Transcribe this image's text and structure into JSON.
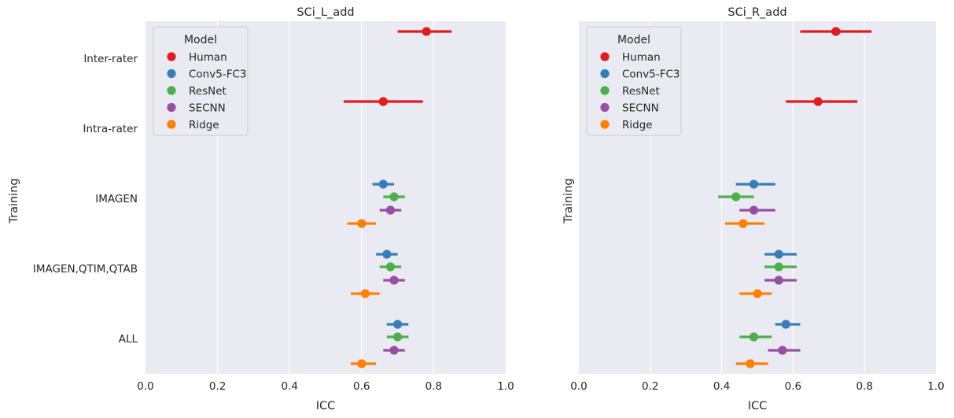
{
  "figure": {
    "ylabel": "Training",
    "xlabel": "ICC",
    "legend_title": "Model",
    "models": [
      {
        "name": "Human",
        "color": "#e41a1c"
      },
      {
        "name": "Conv5-FC3",
        "color": "#377eb8"
      },
      {
        "name": "ResNet",
        "color": "#4daf4a"
      },
      {
        "name": "SECNN",
        "color": "#984ea3"
      },
      {
        "name": "Ridge",
        "color": "#ff7f00"
      }
    ]
  },
  "chart_data": [
    {
      "type": "scatter",
      "subtype": "pointplot-with-ci",
      "title": "SCi_L_add",
      "xlabel": "ICC",
      "ylabel": "Training",
      "xlim": [
        0.0,
        1.0
      ],
      "xticks": [
        "0.0",
        "0.2",
        "0.4",
        "0.6",
        "0.8",
        "1.0"
      ],
      "categories": [
        "Inter-rater",
        "Intra-rater",
        "IMAGEN",
        "IMAGEN,QTIM,QTAB",
        "ALL"
      ],
      "show_category_labels": true,
      "grid": true,
      "legend": "top-left",
      "series": [
        {
          "name": "Human",
          "points": [
            [
              0.78,
              0.7,
              0.85
            ],
            [
              0.66,
              0.55,
              0.77
            ],
            null,
            null,
            null
          ]
        },
        {
          "name": "Conv5-FC3",
          "points": [
            null,
            null,
            [
              0.66,
              0.63,
              0.69
            ],
            [
              0.67,
              0.64,
              0.7
            ],
            [
              0.7,
              0.67,
              0.73
            ]
          ]
        },
        {
          "name": "ResNet",
          "points": [
            null,
            null,
            [
              0.69,
              0.66,
              0.72
            ],
            [
              0.68,
              0.65,
              0.71
            ],
            [
              0.7,
              0.67,
              0.73
            ]
          ]
        },
        {
          "name": "SECNN",
          "points": [
            null,
            null,
            [
              0.68,
              0.65,
              0.71
            ],
            [
              0.69,
              0.66,
              0.72
            ],
            [
              0.69,
              0.66,
              0.72
            ]
          ]
        },
        {
          "name": "Ridge",
          "points": [
            null,
            null,
            [
              0.6,
              0.56,
              0.64
            ],
            [
              0.61,
              0.57,
              0.65
            ],
            [
              0.6,
              0.57,
              0.64
            ]
          ]
        }
      ]
    },
    {
      "type": "scatter",
      "subtype": "pointplot-with-ci",
      "title": "SCi_R_add",
      "xlabel": "ICC",
      "ylabel": "Training",
      "xlim": [
        0.0,
        1.0
      ],
      "xticks": [
        "0.0",
        "0.2",
        "0.4",
        "0.6",
        "0.8",
        "1.0"
      ],
      "categories": [
        "Inter-rater",
        "Intra-rater",
        "IMAGEN",
        "IMAGEN,QTIM,QTAB",
        "ALL"
      ],
      "show_category_labels": false,
      "grid": true,
      "legend": "top-left",
      "series": [
        {
          "name": "Human",
          "points": [
            [
              0.72,
              0.62,
              0.82
            ],
            [
              0.67,
              0.58,
              0.78
            ],
            null,
            null,
            null
          ]
        },
        {
          "name": "Conv5-FC3",
          "points": [
            null,
            null,
            [
              0.49,
              0.44,
              0.55
            ],
            [
              0.56,
              0.52,
              0.61
            ],
            [
              0.58,
              0.55,
              0.62
            ]
          ]
        },
        {
          "name": "ResNet",
          "points": [
            null,
            null,
            [
              0.44,
              0.39,
              0.49
            ],
            [
              0.56,
              0.52,
              0.61
            ],
            [
              0.49,
              0.45,
              0.54
            ]
          ]
        },
        {
          "name": "SECNN",
          "points": [
            null,
            null,
            [
              0.49,
              0.45,
              0.55
            ],
            [
              0.56,
              0.52,
              0.61
            ],
            [
              0.57,
              0.53,
              0.62
            ]
          ]
        },
        {
          "name": "Ridge",
          "points": [
            null,
            null,
            [
              0.46,
              0.41,
              0.52
            ],
            [
              0.5,
              0.45,
              0.54
            ],
            [
              0.48,
              0.44,
              0.53
            ]
          ]
        }
      ]
    }
  ]
}
